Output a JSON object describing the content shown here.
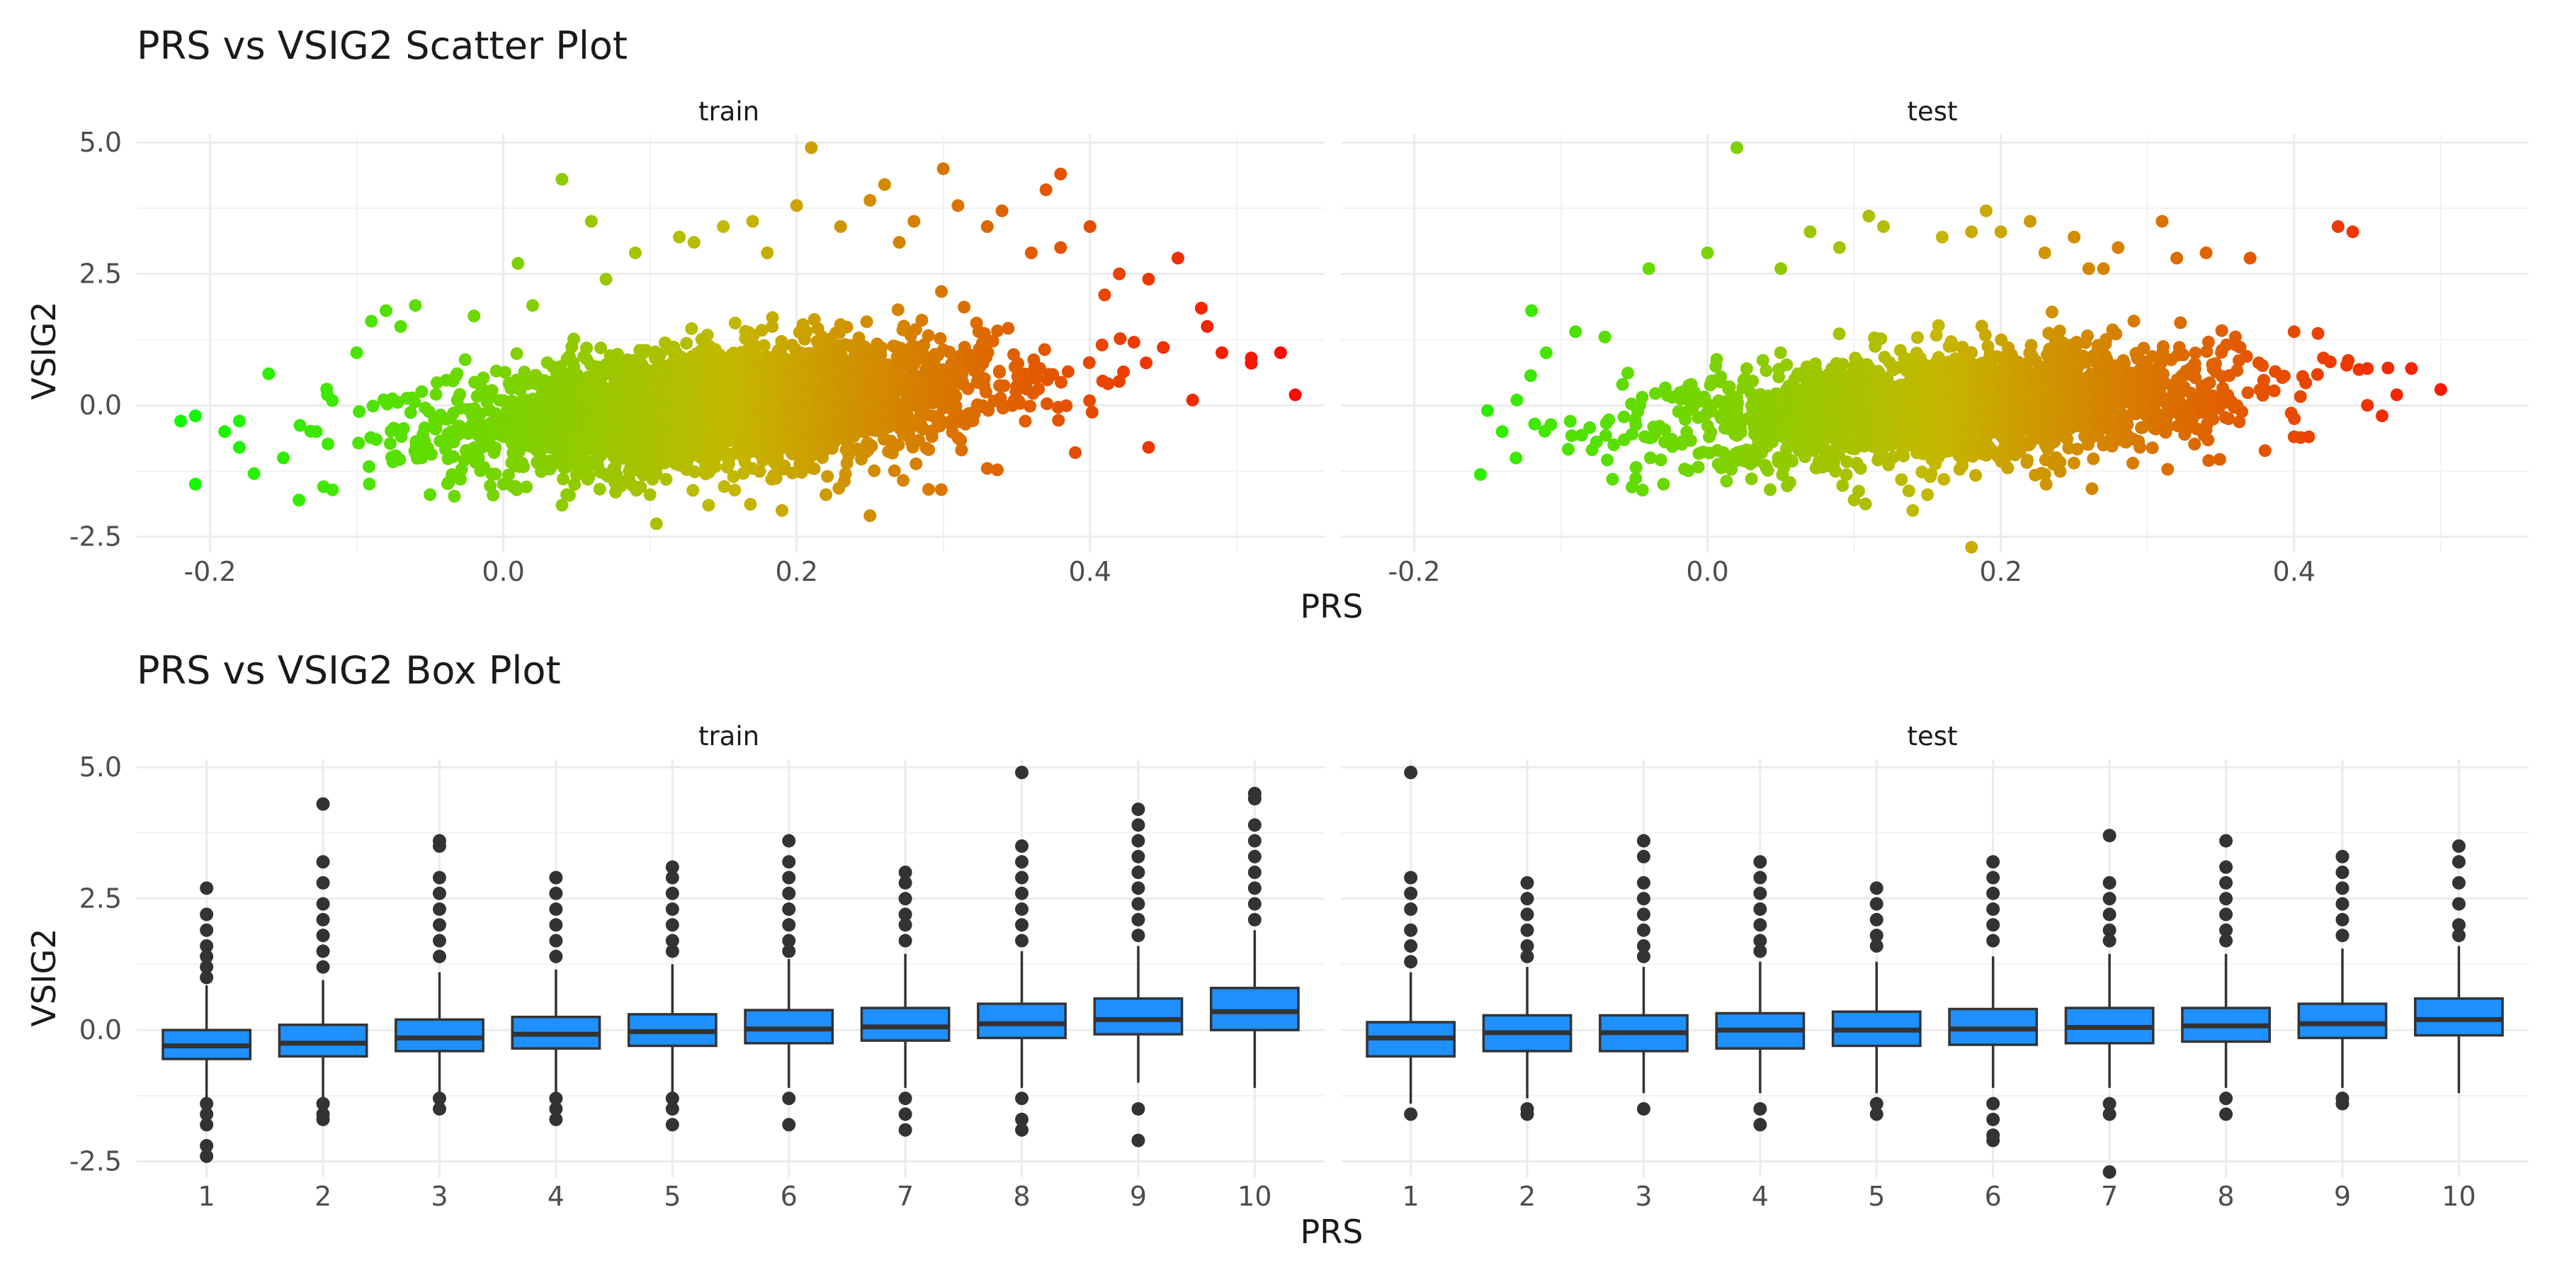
{
  "chart_data": [
    {
      "type": "scatter",
      "title": "PRS vs VSIG2 Scatter Plot",
      "xlabel": "PRS",
      "ylabel": "VSIG2",
      "xlim": [
        -0.25,
        0.56
      ],
      "ylim": [
        -2.8,
        5.15
      ],
      "xticks": [
        -0.2,
        0.0,
        0.2,
        0.4
      ],
      "xtick_labels": [
        "-0.2",
        "0.0",
        "0.2",
        "0.4"
      ],
      "yticks": [
        -2.5,
        0.0,
        2.5,
        5.0
      ],
      "ytick_labels": [
        "-2.5",
        "0.0",
        "2.5",
        "5.0"
      ],
      "color_scale": {
        "low": "#00ff00",
        "mid": "#c4b800",
        "high": "#ff0000",
        "variable": "PRS"
      },
      "grid": true,
      "legend": "none",
      "facets": [
        {
          "label": "train",
          "core": {
            "x_mean": 0.15,
            "x_sd": 0.1,
            "y_intercept": -0.35,
            "y_slope": 2.1,
            "y_sd": 0.55
          },
          "points": [
            [
              -0.22,
              -0.3
            ],
            [
              -0.21,
              -0.2
            ],
            [
              -0.21,
              -1.5
            ],
            [
              -0.19,
              -0.5
            ],
            [
              -0.18,
              -0.3
            ],
            [
              -0.18,
              -0.8
            ],
            [
              -0.17,
              -1.3
            ],
            [
              -0.16,
              0.6
            ],
            [
              -0.15,
              -1.0
            ],
            [
              -0.12,
              0.2
            ],
            [
              -0.1,
              1.0
            ],
            [
              -0.09,
              1.6
            ],
            [
              -0.08,
              1.8
            ],
            [
              -0.07,
              1.5
            ],
            [
              -0.06,
              1.9
            ],
            [
              -0.05,
              -1.7
            ],
            [
              -0.02,
              1.7
            ],
            [
              0.0,
              -1.5
            ],
            [
              0.01,
              2.7
            ],
            [
              0.02,
              1.9
            ],
            [
              0.04,
              4.3
            ],
            [
              0.04,
              -1.9
            ],
            [
              0.06,
              3.5
            ],
            [
              0.07,
              2.4
            ],
            [
              0.09,
              2.9
            ],
            [
              0.1,
              -1.7
            ],
            [
              0.12,
              3.2
            ],
            [
              0.13,
              3.1
            ],
            [
              0.14,
              -1.9
            ],
            [
              0.15,
              3.4
            ],
            [
              0.17,
              3.5
            ],
            [
              0.18,
              2.9
            ],
            [
              0.19,
              -2.0
            ],
            [
              0.2,
              3.8
            ],
            [
              0.21,
              4.9
            ],
            [
              0.22,
              -1.7
            ],
            [
              0.23,
              3.4
            ],
            [
              0.25,
              3.9
            ],
            [
              0.25,
              -2.1
            ],
            [
              0.26,
              4.2
            ],
            [
              0.27,
              3.1
            ],
            [
              0.28,
              3.5
            ],
            [
              0.29,
              -1.6
            ],
            [
              0.3,
              4.5
            ],
            [
              0.31,
              3.8
            ],
            [
              0.33,
              3.4
            ],
            [
              0.33,
              -1.2
            ],
            [
              0.34,
              3.7
            ],
            [
              0.36,
              2.9
            ],
            [
              0.37,
              4.1
            ],
            [
              0.38,
              4.4
            ],
            [
              0.38,
              3.0
            ],
            [
              0.39,
              -0.9
            ],
            [
              0.4,
              3.4
            ],
            [
              0.41,
              2.1
            ],
            [
              0.42,
              2.5
            ],
            [
              0.43,
              1.2
            ],
            [
              0.44,
              -0.8
            ],
            [
              0.44,
              2.4
            ],
            [
              0.45,
              1.1
            ],
            [
              0.46,
              2.8
            ],
            [
              0.47,
              0.1
            ],
            [
              0.48,
              1.5
            ],
            [
              0.49,
              1.0
            ],
            [
              0.51,
              0.9
            ],
            [
              0.51,
              0.8
            ],
            [
              0.53,
              1.0
            ],
            [
              0.54,
              0.2
            ]
          ]
        },
        {
          "label": "test",
          "core": {
            "x_mean": 0.17,
            "x_sd": 0.1,
            "y_intercept": -0.3,
            "y_slope": 1.8,
            "y_sd": 0.5
          },
          "points": [
            [
              -0.15,
              -0.1
            ],
            [
              -0.14,
              -0.5
            ],
            [
              -0.13,
              0.1
            ],
            [
              -0.12,
              1.8
            ],
            [
              -0.11,
              1.0
            ],
            [
              -0.09,
              1.4
            ],
            [
              -0.07,
              1.3
            ],
            [
              -0.04,
              2.6
            ],
            [
              -0.03,
              -1.5
            ],
            [
              0.0,
              2.9
            ],
            [
              0.02,
              4.9
            ],
            [
              0.03,
              -1.4
            ],
            [
              0.05,
              2.6
            ],
            [
              0.07,
              3.3
            ],
            [
              0.09,
              3.0
            ],
            [
              0.1,
              -1.8
            ],
            [
              0.11,
              3.6
            ],
            [
              0.12,
              3.4
            ],
            [
              0.14,
              -2.0
            ],
            [
              0.15,
              -1.7
            ],
            [
              0.16,
              3.2
            ],
            [
              0.18,
              3.3
            ],
            [
              0.18,
              -2.7
            ],
            [
              0.19,
              3.7
            ],
            [
              0.2,
              3.3
            ],
            [
              0.22,
              3.5
            ],
            [
              0.23,
              2.9
            ],
            [
              0.25,
              3.2
            ],
            [
              0.26,
              2.6
            ],
            [
              0.27,
              2.6
            ],
            [
              0.28,
              3.0
            ],
            [
              0.29,
              -1.1
            ],
            [
              0.31,
              3.5
            ],
            [
              0.32,
              2.8
            ],
            [
              0.34,
              2.9
            ],
            [
              0.36,
              1.3
            ],
            [
              0.37,
              2.8
            ],
            [
              0.38,
              0.3
            ],
            [
              0.4,
              1.4
            ],
            [
              0.4,
              -0.6
            ],
            [
              0.41,
              -0.6
            ],
            [
              0.42,
              0.9
            ],
            [
              0.43,
              3.4
            ],
            [
              0.44,
              3.3
            ],
            [
              0.45,
              0.0
            ],
            [
              0.45,
              0.7
            ],
            [
              0.46,
              -0.2
            ],
            [
              0.47,
              0.2
            ],
            [
              0.48,
              0.7
            ],
            [
              0.5,
              0.3
            ]
          ]
        }
      ]
    },
    {
      "type": "box",
      "title": "PRS vs VSIG2 Box Plot",
      "xlabel": "PRS",
      "ylabel": "VSIG2",
      "categories": [
        "1",
        "2",
        "3",
        "4",
        "5",
        "6",
        "7",
        "8",
        "9",
        "10"
      ],
      "ylim": [
        -2.8,
        5.15
      ],
      "yticks": [
        -2.5,
        0.0,
        2.5,
        5.0
      ],
      "ytick_labels": [
        "-2.5",
        "0.0",
        "2.5",
        "5.0"
      ],
      "box_color": "#1e90ff",
      "line_color": "#333333",
      "grid": true,
      "legend": "none",
      "facets": [
        {
          "label": "train",
          "boxes": [
            {
              "min": -1.3,
              "q1": -0.55,
              "median": -0.3,
              "q3": 0.0,
              "max": 0.85,
              "outliers": [
                2.7,
                2.2,
                1.9,
                1.6,
                1.4,
                1.2,
                1.0,
                -1.4,
                -1.6,
                -1.8,
                -2.2,
                -2.4
              ]
            },
            {
              "min": -1.3,
              "q1": -0.5,
              "median": -0.25,
              "q3": 0.1,
              "max": 0.95,
              "outliers": [
                4.3,
                3.2,
                2.8,
                2.4,
                2.1,
                1.8,
                1.5,
                1.2,
                -1.4,
                -1.6,
                -1.7
              ]
            },
            {
              "min": -1.2,
              "q1": -0.4,
              "median": -0.15,
              "q3": 0.2,
              "max": 1.1,
              "outliers": [
                3.6,
                3.5,
                2.9,
                2.6,
                2.3,
                2.0,
                1.7,
                1.4,
                -1.3,
                -1.5
              ]
            },
            {
              "min": -1.2,
              "q1": -0.35,
              "median": -0.08,
              "q3": 0.25,
              "max": 1.15,
              "outliers": [
                2.9,
                2.6,
                2.3,
                2.0,
                1.7,
                1.4,
                -1.3,
                -1.5,
                -1.7
              ]
            },
            {
              "min": -1.2,
              "q1": -0.3,
              "median": -0.03,
              "q3": 0.3,
              "max": 1.25,
              "outliers": [
                3.1,
                2.9,
                2.6,
                2.3,
                2.0,
                1.7,
                1.5,
                -1.3,
                -1.5,
                -1.8
              ]
            },
            {
              "min": -1.1,
              "q1": -0.25,
              "median": 0.02,
              "q3": 0.38,
              "max": 1.35,
              "outliers": [
                3.6,
                3.2,
                2.9,
                2.6,
                2.3,
                2.0,
                1.7,
                1.5,
                -1.3,
                -1.8
              ]
            },
            {
              "min": -1.1,
              "q1": -0.2,
              "median": 0.06,
              "q3": 0.42,
              "max": 1.45,
              "outliers": [
                3.0,
                2.8,
                2.5,
                2.2,
                2.0,
                1.7,
                -1.3,
                -1.6,
                -1.9
              ]
            },
            {
              "min": -1.1,
              "q1": -0.15,
              "median": 0.12,
              "q3": 0.5,
              "max": 1.5,
              "outliers": [
                4.9,
                3.5,
                3.2,
                2.9,
                2.6,
                2.3,
                2.0,
                1.7,
                -1.3,
                -1.7,
                -1.9
              ]
            },
            {
              "min": -1.0,
              "q1": -0.08,
              "median": 0.2,
              "q3": 0.6,
              "max": 1.6,
              "outliers": [
                4.2,
                3.9,
                3.6,
                3.3,
                3.0,
                2.7,
                2.4,
                2.1,
                1.8,
                -1.5,
                -2.1
              ]
            },
            {
              "min": -1.1,
              "q1": 0.0,
              "median": 0.35,
              "q3": 0.8,
              "max": 1.9,
              "outliers": [
                4.5,
                4.4,
                3.9,
                3.6,
                3.3,
                3.0,
                2.7,
                2.4,
                2.1
              ]
            }
          ]
        },
        {
          "label": "test",
          "boxes": [
            {
              "min": -1.4,
              "q1": -0.5,
              "median": -0.15,
              "q3": 0.15,
              "max": 1.1,
              "outliers": [
                4.9,
                2.9,
                2.6,
                2.3,
                1.9,
                1.6,
                1.3,
                -1.6
              ]
            },
            {
              "min": -1.3,
              "q1": -0.4,
              "median": -0.05,
              "q3": 0.28,
              "max": 1.2,
              "outliers": [
                2.8,
                2.5,
                2.2,
                1.9,
                1.6,
                1.4,
                -1.5,
                -1.6
              ]
            },
            {
              "min": -1.2,
              "q1": -0.4,
              "median": -0.05,
              "q3": 0.28,
              "max": 1.2,
              "outliers": [
                3.6,
                3.3,
                2.8,
                2.5,
                2.2,
                1.9,
                1.6,
                1.4,
                -1.5
              ]
            },
            {
              "min": -1.2,
              "q1": -0.35,
              "median": 0.0,
              "q3": 0.32,
              "max": 1.3,
              "outliers": [
                3.2,
                2.9,
                2.6,
                2.3,
                2.0,
                1.7,
                1.5,
                -1.5,
                -1.8
              ]
            },
            {
              "min": -1.2,
              "q1": -0.3,
              "median": 0.0,
              "q3": 0.35,
              "max": 1.3,
              "outliers": [
                2.7,
                2.4,
                2.1,
                1.8,
                1.6,
                -1.4,
                -1.6
              ]
            },
            {
              "min": -1.1,
              "q1": -0.28,
              "median": 0.02,
              "q3": 0.4,
              "max": 1.4,
              "outliers": [
                3.2,
                2.9,
                2.6,
                2.3,
                2.0,
                1.7,
                -1.4,
                -1.7,
                -2.0,
                -2.1
              ]
            },
            {
              "min": -1.1,
              "q1": -0.25,
              "median": 0.05,
              "q3": 0.42,
              "max": 1.45,
              "outliers": [
                3.7,
                2.8,
                2.5,
                2.2,
                1.9,
                1.7,
                -1.4,
                -1.6,
                -2.7
              ]
            },
            {
              "min": -1.1,
              "q1": -0.22,
              "median": 0.08,
              "q3": 0.42,
              "max": 1.45,
              "outliers": [
                3.6,
                3.1,
                2.8,
                2.5,
                2.2,
                1.9,
                1.7,
                -1.3,
                -1.6
              ]
            },
            {
              "min": -1.1,
              "q1": -0.15,
              "median": 0.12,
              "q3": 0.5,
              "max": 1.55,
              "outliers": [
                3.3,
                3.0,
                2.7,
                2.4,
                2.1,
                1.8,
                -1.3,
                -1.4
              ]
            },
            {
              "min": -1.2,
              "q1": -0.1,
              "median": 0.2,
              "q3": 0.6,
              "max": 1.6,
              "outliers": [
                3.5,
                3.2,
                2.8,
                2.4,
                2.0,
                1.8
              ]
            }
          ]
        }
      ]
    }
  ]
}
